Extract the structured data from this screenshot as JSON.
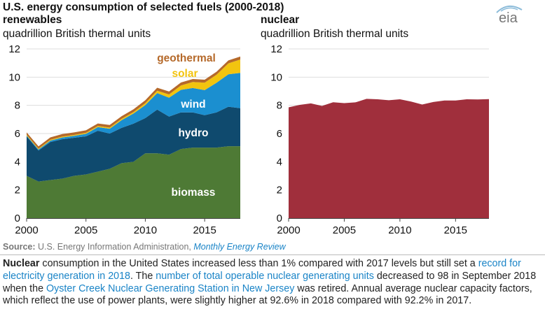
{
  "title": "U.S. energy consumption of selected fuels (2000-2018)",
  "logo_text": "eia",
  "colors": {
    "biomass": "#4e7a35",
    "hydro": "#0f4a6e",
    "wind": "#1b8fd0",
    "solar": "#f2c40f",
    "geothermal": "#b5692a",
    "nuclear": "#a02f3c",
    "link": "#1a84c7"
  },
  "chart_data": [
    {
      "type": "area",
      "stacked": true,
      "title": "renewables",
      "ylabel": "quadrillion British thermal units",
      "ylim": [
        0,
        12
      ],
      "yticks": [
        "0",
        "2",
        "4",
        "6",
        "8",
        "10",
        "12"
      ],
      "xlim": [
        2000,
        2018
      ],
      "xticks": [
        "2000",
        "2005",
        "2010",
        "2015"
      ],
      "x": [
        2000,
        2001,
        2002,
        2003,
        2004,
        2005,
        2006,
        2007,
        2008,
        2009,
        2010,
        2011,
        2012,
        2013,
        2014,
        2015,
        2016,
        2017,
        2018
      ],
      "series": [
        {
          "name": "biomass",
          "values": [
            3.0,
            2.6,
            2.7,
            2.8,
            3.0,
            3.1,
            3.3,
            3.5,
            3.9,
            4.0,
            4.6,
            4.6,
            4.5,
            4.9,
            5.0,
            5.0,
            5.0,
            5.1,
            5.1
          ]
        },
        {
          "name": "hydro",
          "values": [
            2.8,
            2.2,
            2.7,
            2.8,
            2.7,
            2.7,
            2.9,
            2.5,
            2.5,
            2.7,
            2.5,
            3.1,
            2.7,
            2.6,
            2.5,
            2.3,
            2.5,
            2.8,
            2.7
          ]
        },
        {
          "name": "wind",
          "values": [
            0.06,
            0.07,
            0.1,
            0.12,
            0.14,
            0.18,
            0.26,
            0.34,
            0.55,
            0.72,
            0.92,
            1.17,
            1.34,
            1.6,
            1.73,
            1.78,
            2.1,
            2.3,
            2.5
          ]
        },
        {
          "name": "solar",
          "values": [
            0.06,
            0.06,
            0.06,
            0.06,
            0.06,
            0.07,
            0.07,
            0.08,
            0.09,
            0.1,
            0.13,
            0.17,
            0.23,
            0.31,
            0.43,
            0.53,
            0.57,
            0.78,
            0.95
          ]
        },
        {
          "name": "geothermal",
          "values": [
            0.16,
            0.16,
            0.17,
            0.18,
            0.18,
            0.18,
            0.18,
            0.19,
            0.19,
            0.2,
            0.21,
            0.21,
            0.21,
            0.21,
            0.21,
            0.21,
            0.21,
            0.21,
            0.21
          ]
        }
      ]
    },
    {
      "type": "area",
      "title": "nuclear",
      "ylabel": "quadrillion British thermal units",
      "ylim": [
        0,
        12
      ],
      "yticks": [
        "0",
        "2",
        "4",
        "6",
        "8",
        "10",
        "12"
      ],
      "xlim": [
        2000,
        2018
      ],
      "xticks": [
        "2000",
        "2005",
        "2010",
        "2015"
      ],
      "x": [
        2000,
        2001,
        2002,
        2003,
        2004,
        2005,
        2006,
        2007,
        2008,
        2009,
        2010,
        2011,
        2012,
        2013,
        2014,
        2015,
        2016,
        2017,
        2018
      ],
      "series": [
        {
          "name": "nuclear",
          "values": [
            7.86,
            8.03,
            8.14,
            7.96,
            8.22,
            8.16,
            8.21,
            8.46,
            8.43,
            8.36,
            8.43,
            8.27,
            8.06,
            8.24,
            8.34,
            8.34,
            8.43,
            8.42,
            8.44
          ]
        }
      ]
    }
  ],
  "source": {
    "label": "Source:",
    "text": " U.S. Energy Information Administration, ",
    "link": "Monthly Energy Review"
  },
  "caption": {
    "p1": "Nuclear",
    "p2": " consumption in the United States increased less than 1% compared with 2017 levels but still set a ",
    "p3": "record for electricity generation in 2018",
    "p4": ". The ",
    "p5": "number of total operable nuclear generating units",
    "p6": " decreased to 98 in September 2018 when the ",
    "p7": "Oyster Creek Nuclear Generating Station in New Jersey",
    "p8": " was retired. Annual average nuclear capacity factors, which reflect the use of power plants, were slightly higher at 92.6% in 2018 compared with 92.2% in 2017."
  }
}
